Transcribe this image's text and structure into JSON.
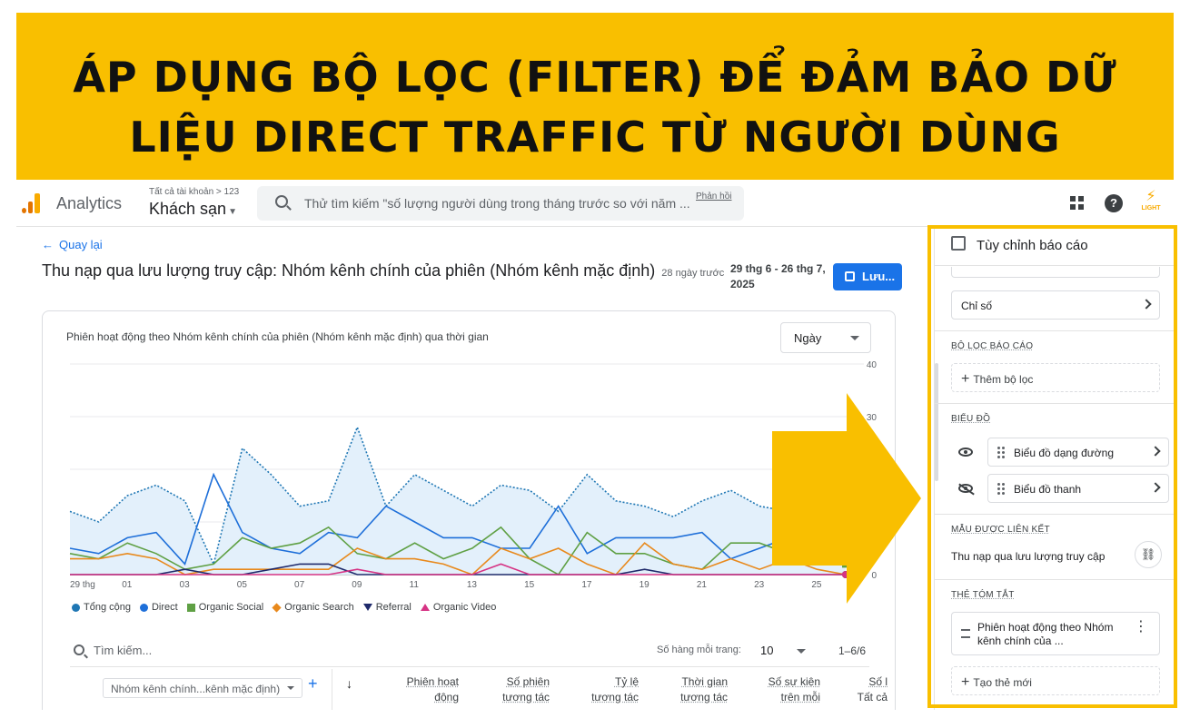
{
  "banner": {
    "line1": "ÁP DỤNG BỘ LỌC (FILTER) ĐỂ ĐẢM BẢO DỮ",
    "line2": "LIỆU DIRECT TRAFFIC TỪ NGƯỜI DÙNG"
  },
  "topbar": {
    "app_name": "Analytics",
    "account_path": "Tất cả tài khoản > 123",
    "property": "Khách sạn",
    "search_placeholder": "Thử tìm kiếm \"số lượng người dùng trong tháng trước so với năm ...",
    "feedback": "Phản hồi",
    "light_logo": "LIGHT",
    "help": "?"
  },
  "main": {
    "back_label": "Quay lại",
    "title": "Thu nạp qua lưu lượng truy cập: Nhóm kênh chính của phiên (Nhóm kênh mặc định)",
    "title_sub": "28 ngày trước",
    "date_range": "29 thg 6 - 26 thg 7, 2025",
    "save_label": "Lưu..."
  },
  "chart": {
    "title": "Phiên hoạt động theo Nhóm kênh chính của phiên (Nhóm kênh mặc định) qua thời gian",
    "granularity": "Ngày"
  },
  "chart_data": {
    "type": "line",
    "title": "Phiên hoạt động theo Nhóm kênh chính của phiên (Nhóm kênh mặc định) qua thời gian",
    "x_tick_labels": [
      "29 thg",
      "01",
      "03",
      "05",
      "07",
      "09",
      "11",
      "13",
      "15",
      "17",
      "19",
      "21",
      "23",
      "25"
    ],
    "y_tick_labels": [
      "0",
      "10",
      "20",
      "30",
      "40"
    ],
    "ylim": [
      0,
      40
    ],
    "grid": true,
    "legend_position": "bottom",
    "series": [
      {
        "name": "Tổng cộng",
        "color": "#1f77b4",
        "values": [
          12,
          10,
          15,
          17,
          14,
          2,
          24,
          19,
          13,
          14,
          28,
          13,
          19,
          16,
          13,
          17,
          16,
          12,
          19,
          14,
          13,
          11,
          14,
          16,
          13,
          12,
          10,
          7
        ]
      },
      {
        "name": "Direct",
        "color": "#1e6fd9",
        "values": [
          5,
          4,
          7,
          8,
          2,
          19,
          8,
          5,
          4,
          8,
          7,
          13,
          10,
          7,
          7,
          5,
          5,
          13,
          4,
          7,
          7,
          7,
          8,
          3,
          5,
          7,
          7,
          6
        ]
      },
      {
        "name": "Organic Social",
        "color": "#5fa044",
        "values": [
          4,
          3,
          6,
          4,
          1,
          2,
          7,
          5,
          6,
          9,
          4,
          3,
          6,
          3,
          5,
          9,
          3,
          0,
          8,
          4,
          4,
          2,
          1,
          6,
          6,
          4,
          2,
          2
        ]
      },
      {
        "name": "Organic Search",
        "color": "#e8891c",
        "values": [
          3,
          3,
          4,
          3,
          0,
          1,
          1,
          1,
          1,
          1,
          5,
          3,
          3,
          2,
          0,
          5,
          3,
          5,
          2,
          0,
          6,
          2,
          1,
          3,
          1,
          3,
          1,
          0
        ]
      },
      {
        "name": "Referral",
        "color": "#1f2a6b",
        "values": [
          0,
          0,
          0,
          0,
          1,
          0,
          0,
          1,
          2,
          2,
          0,
          0,
          0,
          0,
          0,
          0,
          0,
          0,
          0,
          0,
          1,
          0,
          0,
          0,
          0,
          0,
          0,
          0
        ]
      },
      {
        "name": "Organic Video",
        "color": "#d63384",
        "values": [
          0,
          0,
          0,
          0,
          0,
          0,
          0,
          0,
          0,
          0,
          1,
          0,
          0,
          0,
          0,
          2,
          0,
          0,
          0,
          0,
          0,
          0,
          0,
          0,
          0,
          0,
          0,
          0
        ]
      }
    ]
  },
  "table": {
    "search_placeholder": "Tìm kiếm...",
    "rows_per_page_label": "Số hàng mỗi trang:",
    "rows_per_page": "10",
    "pager": "1–6/6",
    "dimension": "Nhóm kênh chính...kênh mặc định)",
    "add_dimension": "+",
    "sort_arrow": "↓",
    "columns": [
      {
        "l1": "Phiên hoạt",
        "l2": "động"
      },
      {
        "l1": "Số phiên",
        "l2": "tương tác"
      },
      {
        "l1": "Tỷ lệ",
        "l2": "tương tác"
      },
      {
        "l1": "Thời gian",
        "l2": "tương tác"
      },
      {
        "l1": "Số sự kiện",
        "l2": "trên mỗi"
      },
      {
        "l1": "Số l",
        "l2": "Tất cả"
      }
    ]
  },
  "panel": {
    "title": "Tùy chỉnh báo cáo",
    "metrics_label": "Chỉ số",
    "report_filter_section": "BỘ LỌC BÁO CÁO",
    "add_filter": "Thêm bộ lọc",
    "charts_section": "BIỂU ĐỒ",
    "chart_line": "Biểu đồ dạng đường",
    "chart_bar": "Biểu đồ thanh",
    "linked_section": "MẪU ĐƯỢC LIÊN KẾT",
    "linked_template": "Thu nạp qua lưu lượng truy cập",
    "summary_section": "THẺ TÓM TẮT",
    "summary_card": "Phiên hoạt động theo Nhóm kênh chính của ...",
    "create_card": "Tạo thẻ mới"
  }
}
